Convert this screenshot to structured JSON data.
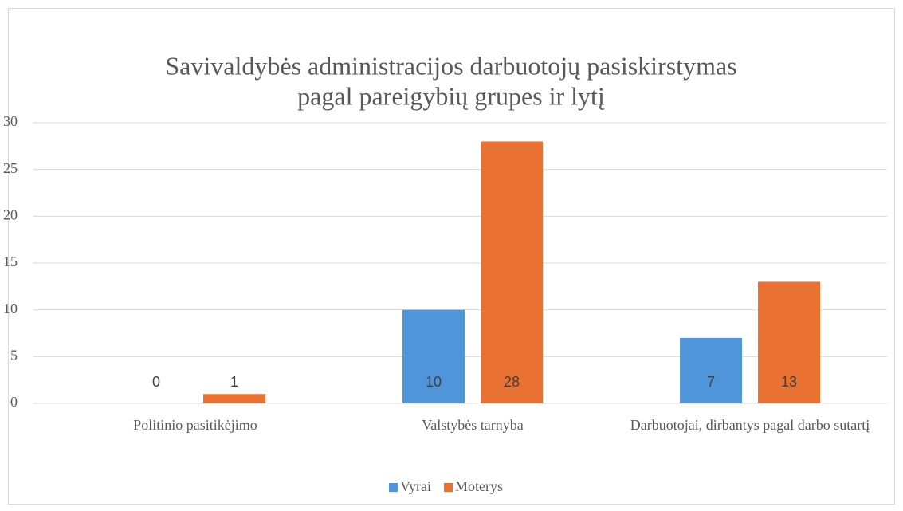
{
  "chart_data": {
    "type": "bar",
    "title": [
      "Savivaldybės administracijos darbuotojų pasiskirstymas",
      "pagal pareigybių grupes ir lytį"
    ],
    "categories": [
      "Politinio pasitikėjimo",
      "Valstybės tarnyba",
      "Darbuotojai, dirbantys pagal darbo sutartį"
    ],
    "series": [
      {
        "name": "Vyrai",
        "color": "#4e95d9",
        "values": [
          0,
          10,
          7
        ]
      },
      {
        "name": "Moterys",
        "color": "#e97132",
        "values": [
          1,
          28,
          13
        ]
      }
    ],
    "ylim": [
      0,
      30
    ],
    "yticks": [
      0,
      5,
      10,
      15,
      20,
      25,
      30
    ],
    "grid": true,
    "legend": "bottom"
  }
}
